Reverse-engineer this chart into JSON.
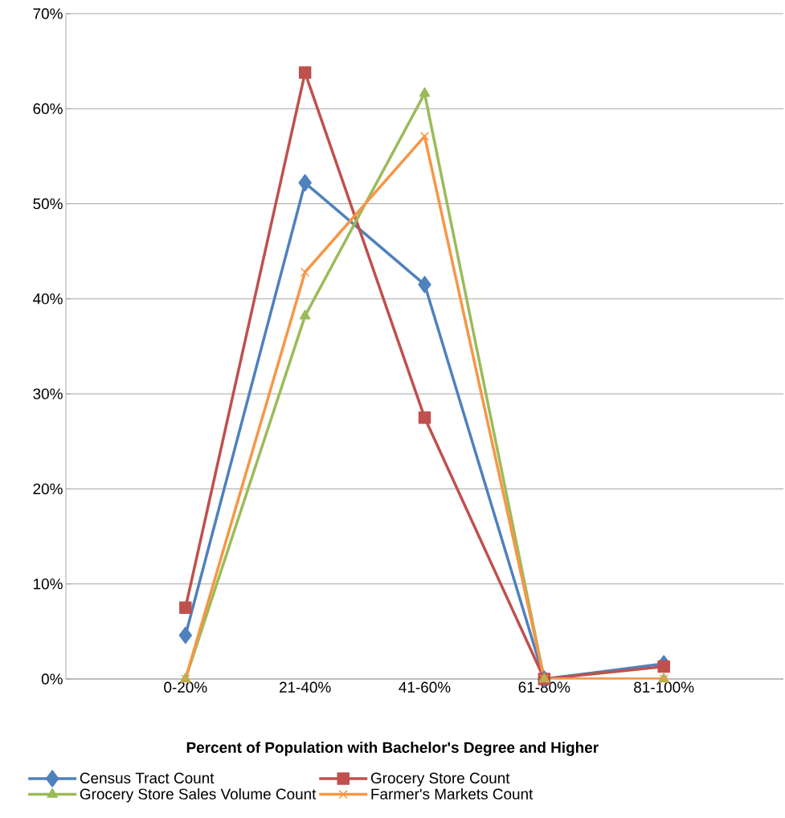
{
  "chart_data": {
    "type": "line",
    "xlabel": "Percent of Population with Bachelor's Degree and Higher",
    "categories": [
      "0-20%",
      "21-40%",
      "41-60%",
      "61-80%",
      "81-100%"
    ],
    "series": [
      {
        "name": "Census Tract Count",
        "color": "#4f81bd",
        "marker": "diamond",
        "values": [
          4.6,
          52.2,
          41.5,
          0,
          1.6
        ]
      },
      {
        "name": "Grocery Store Count",
        "color": "#c0504d",
        "marker": "square",
        "values": [
          7.5,
          63.8,
          27.5,
          0,
          1.3
        ]
      },
      {
        "name": "Grocery Store Sales Volume Count",
        "color": "#9bbb59",
        "marker": "triangle",
        "values": [
          0,
          38.2,
          61.6,
          0,
          0
        ]
      },
      {
        "name": "Farmer's Markets Count",
        "color": "#f79646",
        "marker": "cross",
        "values": [
          0,
          42.8,
          57.1,
          0,
          0
        ]
      }
    ],
    "ylim": [
      0,
      70
    ],
    "yticks": [
      {
        "value": 0,
        "label": "0%"
      },
      {
        "value": 10,
        "label": "10%"
      },
      {
        "value": 20,
        "label": "20%"
      },
      {
        "value": 30,
        "label": "30%"
      },
      {
        "value": 40,
        "label": "40%"
      },
      {
        "value": 50,
        "label": "50%"
      },
      {
        "value": 60,
        "label": "60%"
      },
      {
        "value": 70,
        "label": "70%"
      }
    ],
    "grid": "y",
    "legend": "bottom"
  }
}
